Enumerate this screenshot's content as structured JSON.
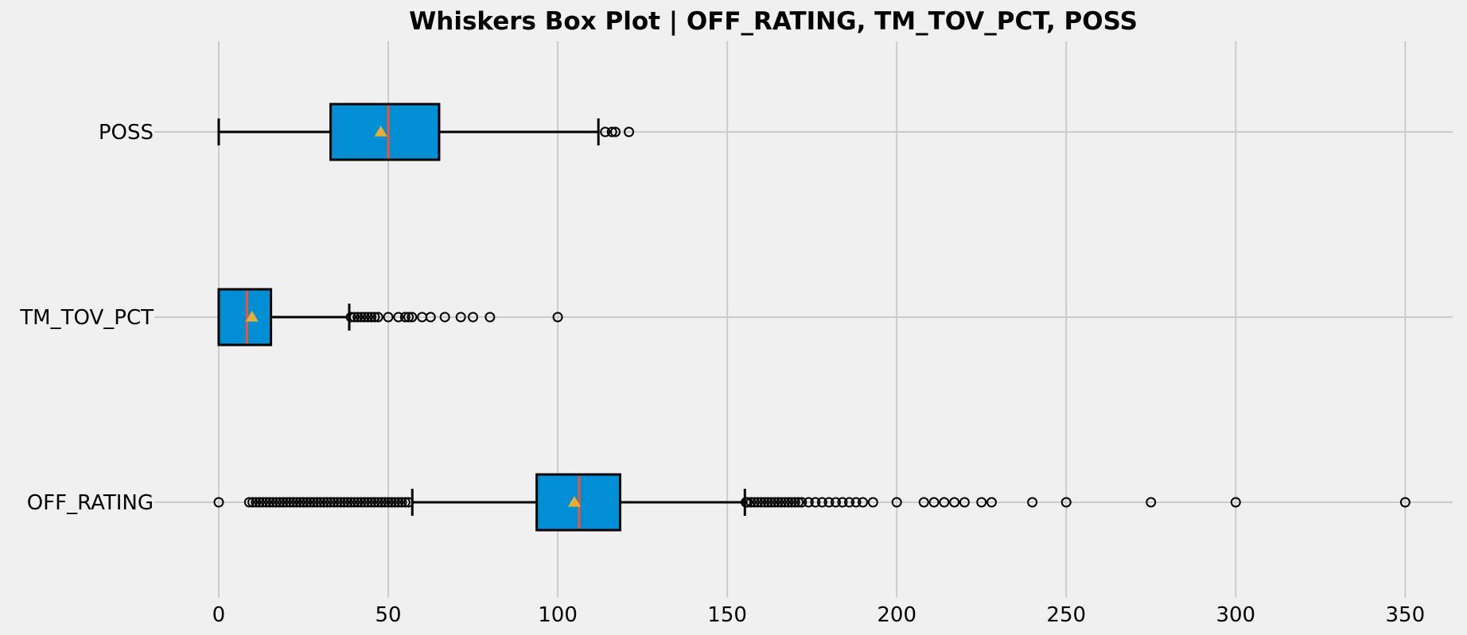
{
  "chart_data": {
    "type": "box",
    "orientation": "horizontal",
    "title": "Whiskers Box Plot | OFF_RATING, TM_TOV_PCT, POSS",
    "xlabel": "",
    "ylabel": "",
    "xlim": [
      -19,
      364
    ],
    "xticks": [
      0,
      50,
      100,
      150,
      200,
      250,
      300,
      350
    ],
    "grid": true,
    "box_color": "#008fd5",
    "median_color": "#fc4f30",
    "mean_color": "#e5ae38",
    "series": [
      {
        "name": "OFF_RATING",
        "whisker_low": 57.1,
        "q1": 93.8,
        "median": 106.3,
        "q3": 118.4,
        "whisker_high": 155.2,
        "mean": 104.9,
        "outliers": [
          0,
          9,
          10,
          11,
          12,
          13,
          14,
          15,
          16,
          17,
          18,
          19,
          20,
          21,
          22,
          23,
          24,
          25,
          26,
          27,
          28,
          29,
          30,
          31,
          32,
          33,
          34,
          35,
          36,
          37,
          38,
          39,
          40,
          41,
          42,
          43,
          44,
          45,
          46,
          47,
          48,
          49,
          50,
          51,
          52,
          53,
          54,
          55,
          56,
          155.5,
          156,
          157,
          158,
          159,
          160,
          161,
          162,
          163,
          164,
          165,
          166,
          167,
          168,
          169,
          170,
          171,
          172,
          174,
          176,
          178,
          180,
          182,
          184,
          186,
          188,
          190,
          193,
          200,
          208,
          211,
          214,
          217,
          220,
          225,
          228,
          240,
          250,
          275,
          300,
          350
        ]
      },
      {
        "name": "TM_TOV_PCT",
        "whisker_low": 0,
        "q1": 0,
        "median": 8.3,
        "q3": 15.4,
        "whisker_high": 38.5,
        "mean": 9.8,
        "outliers": [
          39,
          40,
          41,
          42,
          43,
          44,
          45,
          46,
          47,
          50,
          53,
          55,
          56,
          57,
          60,
          62.5,
          66.7,
          71.4,
          75,
          80,
          100
        ]
      },
      {
        "name": "POSS",
        "whisker_low": 0,
        "q1": 33,
        "median": 50,
        "q3": 65,
        "whisker_high": 112,
        "mean": 47.8,
        "outliers": [
          114,
          116,
          117,
          121
        ]
      }
    ]
  }
}
